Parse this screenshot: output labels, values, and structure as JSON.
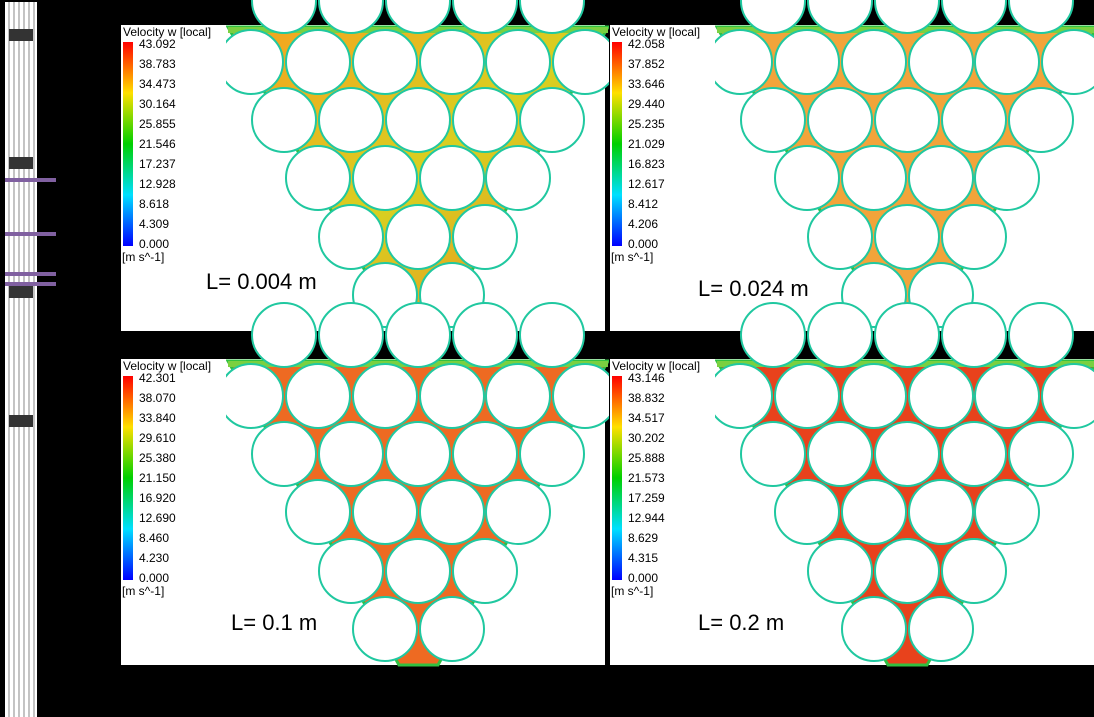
{
  "panels": [
    {
      "legend_title": "Velocity w [local]",
      "ticks": [
        "43.092",
        "38.783",
        "34.473",
        "30.164",
        "25.855",
        "21.546",
        "17.237",
        "12.928",
        "8.618",
        "4.309",
        "0.000"
      ],
      "unit": "[m s^-1]",
      "label": "L= 0.004 m"
    },
    {
      "legend_title": "Velocity w [local]",
      "ticks": [
        "42.058",
        "37.852",
        "33.646",
        "29.440",
        "25.235",
        "21.029",
        "16.823",
        "12.617",
        "8.412",
        "4.206",
        "0.000"
      ],
      "unit": "[m s^-1]",
      "label": "L= 0.024 m"
    },
    {
      "legend_title": "Velocity w [local]",
      "ticks": [
        "42.301",
        "38.070",
        "33.840",
        "29.610",
        "25.380",
        "21.150",
        "16.920",
        "12.690",
        "8.460",
        "4.230",
        "0.000"
      ],
      "unit": "[m s^-1]",
      "label": "L= 0.1 m"
    },
    {
      "legend_title": "Velocity w [local]",
      "ticks": [
        "43.146",
        "38.832",
        "34.517",
        "30.202",
        "25.888",
        "21.573",
        "17.259",
        "12.944",
        "8.629",
        "4.315",
        "0.000"
      ],
      "unit": "[m s^-1]",
      "label": "L= 0.2 m"
    }
  ]
}
